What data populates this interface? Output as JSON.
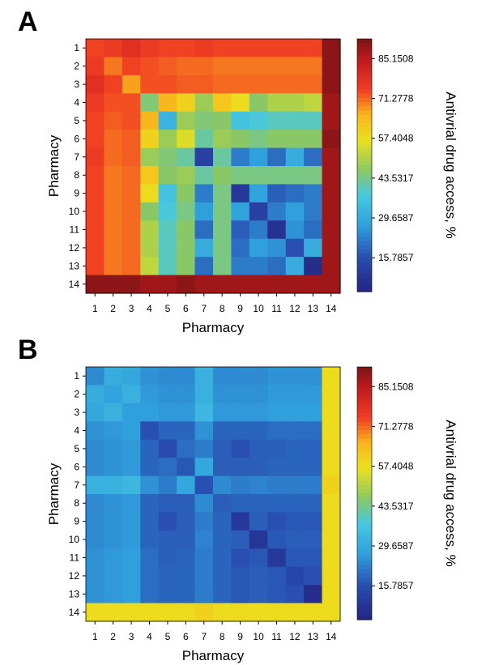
{
  "panels": [
    {
      "letter": "A"
    },
    {
      "letter": "B"
    }
  ],
  "chart_data": [
    {
      "type": "heatmap",
      "panel": "A",
      "xlabel": "Pharmacy",
      "ylabel": "Pharmacy",
      "x_categories": [
        "1",
        "2",
        "3",
        "4",
        "5",
        "6",
        "7",
        "8",
        "9",
        "10",
        "11",
        "12",
        "13",
        "14"
      ],
      "y_categories": [
        "1",
        "2",
        "3",
        "4",
        "5",
        "6",
        "7",
        "8",
        "9",
        "10",
        "11",
        "12",
        "13",
        "14"
      ],
      "colorbar": {
        "label": "Antivrial drug access, %",
        "ticks": [
          "85.1508",
          "71.2778",
          "57.4048",
          "43.5317",
          "29.6587",
          "15.7857"
        ],
        "tick_values": [
          85.1508,
          71.2778,
          57.4048,
          43.5317,
          29.6587,
          15.7857
        ],
        "range": [
          4,
          92
        ]
      },
      "values": [
        [
          74,
          75,
          78,
          75,
          74,
          74,
          75,
          74,
          74,
          74,
          74,
          74,
          74,
          90
        ],
        [
          75,
          70,
          74,
          73,
          72,
          71,
          71,
          70,
          70,
          70,
          70,
          70,
          70,
          90
        ],
        [
          78,
          74,
          67,
          73,
          73,
          72,
          72,
          71,
          71,
          71,
          71,
          71,
          71,
          90
        ],
        [
          75,
          73,
          73,
          45,
          65,
          60,
          48,
          62,
          58,
          46,
          50,
          50,
          52,
          88
        ],
        [
          74,
          72,
          73,
          65,
          32,
          48,
          45,
          46,
          36,
          38,
          40,
          40,
          40,
          88
        ],
        [
          74,
          71,
          72,
          60,
          48,
          55,
          42,
          48,
          46,
          44,
          46,
          46,
          46,
          90
        ],
        [
          75,
          71,
          72,
          48,
          45,
          42,
          12,
          42,
          22,
          27,
          20,
          30,
          20,
          88
        ],
        [
          74,
          70,
          71,
          62,
          46,
          48,
          42,
          46,
          44,
          44,
          44,
          44,
          44,
          88
        ],
        [
          74,
          70,
          71,
          58,
          36,
          46,
          22,
          44,
          10,
          28,
          18,
          20,
          22,
          88
        ],
        [
          74,
          70,
          71,
          46,
          38,
          44,
          27,
          44,
          28,
          12,
          22,
          27,
          22,
          88
        ],
        [
          74,
          70,
          71,
          50,
          40,
          46,
          20,
          44,
          18,
          22,
          8,
          25,
          20,
          88
        ],
        [
          74,
          70,
          71,
          50,
          40,
          46,
          30,
          44,
          20,
          27,
          25,
          16,
          30,
          88
        ],
        [
          74,
          70,
          71,
          52,
          40,
          46,
          20,
          44,
          22,
          22,
          20,
          30,
          6,
          88
        ],
        [
          90,
          90,
          90,
          88,
          88,
          90,
          88,
          88,
          88,
          88,
          88,
          88,
          88,
          88
        ]
      ]
    },
    {
      "type": "heatmap",
      "panel": "B",
      "xlabel": "Pharmacy",
      "ylabel": "Pharmacy",
      "x_categories": [
        "1",
        "2",
        "3",
        "4",
        "5",
        "6",
        "7",
        "8",
        "9",
        "10",
        "11",
        "12",
        "13",
        "14"
      ],
      "y_categories": [
        "1",
        "2",
        "3",
        "4",
        "5",
        "6",
        "7",
        "8",
        "9",
        "10",
        "11",
        "12",
        "13",
        "14"
      ],
      "colorbar": {
        "label": "Antivrial drug access, %",
        "ticks": [
          "85.1508",
          "71.2778",
          "57.4048",
          "43.5317",
          "29.6587",
          "15.7857"
        ],
        "tick_values": [
          85.1508,
          71.2778,
          57.4048,
          43.5317,
          29.6587,
          15.7857
        ],
        "range": [
          4,
          92
        ]
      },
      "values": [
        [
          24,
          30,
          29,
          25,
          24,
          24,
          31,
          24,
          24,
          24,
          25,
          25,
          25,
          58
        ],
        [
          30,
          28,
          31,
          26,
          25,
          25,
          31,
          25,
          25,
          25,
          26,
          26,
          26,
          58
        ],
        [
          29,
          31,
          27,
          27,
          26,
          26,
          33,
          26,
          26,
          26,
          27,
          27,
          27,
          58
        ],
        [
          25,
          26,
          27,
          16,
          19,
          19,
          25,
          19,
          19,
          19,
          20,
          20,
          20,
          58
        ],
        [
          24,
          25,
          26,
          19,
          15,
          20,
          22,
          18,
          16,
          18,
          18,
          19,
          19,
          58
        ],
        [
          24,
          25,
          26,
          19,
          20,
          17,
          29,
          18,
          18,
          18,
          19,
          19,
          19,
          58
        ],
        [
          31,
          31,
          33,
          25,
          22,
          29,
          16,
          24,
          22,
          23,
          22,
          22,
          22,
          60
        ],
        [
          24,
          25,
          26,
          19,
          18,
          18,
          24,
          18,
          19,
          19,
          19,
          19,
          19,
          58
        ],
        [
          24,
          25,
          26,
          19,
          16,
          18,
          22,
          19,
          10,
          18,
          16,
          17,
          17,
          58
        ],
        [
          24,
          25,
          26,
          19,
          18,
          18,
          23,
          19,
          18,
          9,
          17,
          18,
          18,
          58
        ],
        [
          25,
          26,
          27,
          20,
          18,
          19,
          22,
          19,
          16,
          17,
          10,
          17,
          17,
          58
        ],
        [
          25,
          26,
          27,
          20,
          19,
          19,
          22,
          19,
          17,
          18,
          17,
          14,
          16,
          58
        ],
        [
          25,
          26,
          27,
          20,
          19,
          19,
          22,
          19,
          17,
          18,
          17,
          16,
          6,
          58
        ],
        [
          58,
          58,
          58,
          58,
          58,
          58,
          60,
          58,
          58,
          58,
          58,
          58,
          58,
          58
        ]
      ]
    }
  ]
}
